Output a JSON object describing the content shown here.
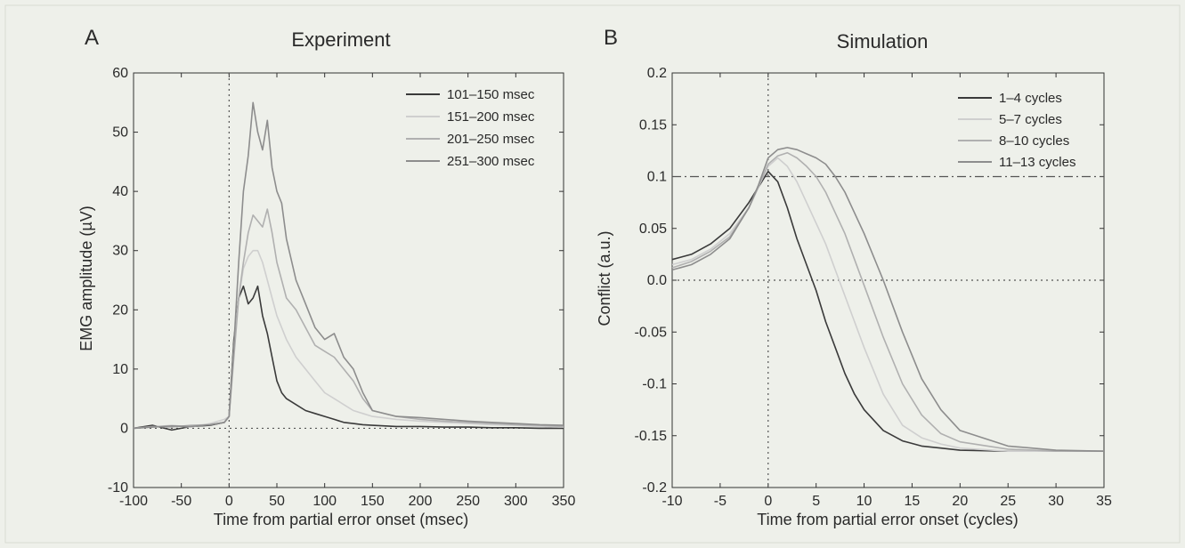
{
  "chart_data": [
    {
      "type": "line",
      "panel_letter": "A",
      "title": "Experiment",
      "xlabel": "Time from partial error onset (msec)",
      "ylabel": "EMG amplitude (µV)",
      "xlim": [
        -100,
        350
      ],
      "ylim": [
        -10,
        60
      ],
      "xticks": [
        "-100",
        "-50",
        "0",
        "50",
        "100",
        "150",
        "200",
        "250",
        "300",
        "350"
      ],
      "yticks": [
        "-10",
        "0",
        "10",
        "20",
        "30",
        "40",
        "50",
        "60"
      ],
      "legend_position": "top-right",
      "reference_lines": [
        {
          "orientation": "vertical",
          "value": 0,
          "style": "dotted"
        },
        {
          "orientation": "horizontal",
          "value": 0,
          "style": "dotted"
        }
      ],
      "series": [
        {
          "name": "101–150 msec",
          "color": "#3a3a3a",
          "x": [
            -100,
            -80,
            -60,
            -40,
            -20,
            -5,
            0,
            5,
            10,
            15,
            20,
            25,
            30,
            35,
            40,
            45,
            50,
            55,
            60,
            70,
            80,
            90,
            100,
            110,
            120,
            130,
            140,
            150,
            175,
            200,
            225,
            250,
            275,
            300,
            325,
            350
          ],
          "y": [
            0,
            0.5,
            -0.3,
            0.3,
            0.5,
            1,
            2,
            15,
            22,
            24,
            21,
            22,
            24,
            19,
            16,
            12,
            8,
            6,
            5,
            4,
            3,
            2.5,
            2,
            1.5,
            1,
            0.8,
            0.6,
            0.5,
            0.3,
            0.3,
            0.2,
            0.2,
            0.1,
            0.1,
            0,
            0
          ]
        },
        {
          "name": "151–200 msec",
          "color": "#cfcfcf",
          "x": [
            -100,
            -80,
            -60,
            -40,
            -20,
            -5,
            0,
            5,
            10,
            15,
            20,
            25,
            30,
            35,
            40,
            45,
            50,
            55,
            60,
            70,
            80,
            90,
            100,
            110,
            120,
            130,
            140,
            150,
            175,
            200,
            225,
            250,
            275,
            300,
            325,
            350
          ],
          "y": [
            0,
            0.2,
            0.5,
            0.2,
            0.8,
            1.5,
            2,
            14,
            22,
            27,
            29,
            30,
            30,
            28,
            25,
            22,
            19,
            17,
            15,
            12,
            10,
            8,
            6,
            5,
            4,
            3,
            2.5,
            2,
            1.5,
            1.2,
            1,
            0.8,
            0.6,
            0.5,
            0.3,
            0.2
          ]
        },
        {
          "name": "201–250 msec",
          "color": "#b0b0b0",
          "x": [
            -100,
            -80,
            -60,
            -40,
            -20,
            -5,
            0,
            5,
            10,
            15,
            20,
            25,
            30,
            35,
            40,
            45,
            50,
            55,
            60,
            70,
            80,
            90,
            100,
            110,
            120,
            130,
            140,
            150,
            175,
            200,
            225,
            250,
            275,
            300,
            325,
            350
          ],
          "y": [
            0,
            0.3,
            0.2,
            0.5,
            0.6,
            1,
            2,
            12,
            22,
            28,
            33,
            36,
            35,
            34,
            37,
            33,
            28,
            25,
            22,
            20,
            17,
            14,
            13,
            12,
            10,
            8,
            5,
            3,
            2,
            1.5,
            1.2,
            1,
            0.8,
            0.6,
            0.5,
            0.3
          ]
        },
        {
          "name": "251–300 msec",
          "color": "#8d8d8d",
          "x": [
            -100,
            -80,
            -60,
            -40,
            -20,
            -5,
            0,
            5,
            10,
            15,
            20,
            25,
            30,
            35,
            40,
            45,
            50,
            55,
            60,
            70,
            80,
            90,
            100,
            110,
            120,
            130,
            140,
            150,
            175,
            200,
            225,
            250,
            275,
            300,
            325,
            350
          ],
          "y": [
            0,
            0.2,
            0.4,
            0.3,
            0.6,
            1,
            2,
            14,
            28,
            40,
            46,
            55,
            50,
            47,
            52,
            44,
            40,
            38,
            32,
            25,
            21,
            17,
            15,
            16,
            12,
            10,
            6,
            3,
            2,
            1.8,
            1.5,
            1.2,
            1,
            0.8,
            0.6,
            0.5
          ]
        }
      ]
    },
    {
      "type": "line",
      "panel_letter": "B",
      "title": "Simulation",
      "xlabel": "Time from partial error onset (cycles)",
      "ylabel": "Conflict (a.u.)",
      "xlim": [
        -10,
        35
      ],
      "ylim": [
        -0.2,
        0.2
      ],
      "xticks": [
        "-10",
        "-5",
        "0",
        "5",
        "10",
        "15",
        "20",
        "25",
        "30",
        "35"
      ],
      "yticks": [
        "-0.2",
        "-0.15",
        "-0.1",
        "-0.05",
        "0.0",
        "0.05",
        "0.1",
        "0.15",
        "0.2"
      ],
      "legend_position": "top-right",
      "reference_lines": [
        {
          "orientation": "vertical",
          "value": 0,
          "style": "dotted"
        },
        {
          "orientation": "horizontal",
          "value": 0,
          "style": "dotted"
        },
        {
          "orientation": "horizontal",
          "value": 0.1,
          "style": "dash-dot"
        }
      ],
      "series": [
        {
          "name": "1–4 cycles",
          "color": "#3a3a3a",
          "x": [
            -10,
            -8,
            -6,
            -4,
            -2,
            -1,
            0,
            1,
            2,
            3,
            4,
            5,
            6,
            7,
            8,
            9,
            10,
            12,
            14,
            16,
            18,
            20,
            25,
            30,
            35
          ],
          "y": [
            0.02,
            0.025,
            0.035,
            0.05,
            0.075,
            0.09,
            0.105,
            0.095,
            0.07,
            0.04,
            0.015,
            -0.01,
            -0.04,
            -0.065,
            -0.09,
            -0.11,
            -0.125,
            -0.145,
            -0.155,
            -0.16,
            -0.162,
            -0.164,
            -0.165,
            -0.165,
            -0.165
          ]
        },
        {
          "name": "5–7 cycles",
          "color": "#cfcfcf",
          "x": [
            -10,
            -8,
            -6,
            -4,
            -2,
            -1,
            0,
            1,
            2,
            3,
            4,
            5,
            6,
            7,
            8,
            9,
            10,
            12,
            14,
            16,
            18,
            20,
            25,
            30,
            35
          ],
          "y": [
            0.015,
            0.02,
            0.03,
            0.045,
            0.07,
            0.09,
            0.11,
            0.118,
            0.11,
            0.095,
            0.075,
            0.055,
            0.035,
            0.01,
            -0.015,
            -0.04,
            -0.065,
            -0.11,
            -0.14,
            -0.152,
            -0.158,
            -0.162,
            -0.165,
            -0.165,
            -0.165
          ]
        },
        {
          "name": "8–10 cycles",
          "color": "#b0b0b0",
          "x": [
            -10,
            -8,
            -6,
            -4,
            -2,
            -1,
            0,
            1,
            2,
            3,
            4,
            5,
            6,
            7,
            8,
            9,
            10,
            12,
            14,
            16,
            18,
            20,
            25,
            30,
            35
          ],
          "y": [
            0.012,
            0.018,
            0.028,
            0.042,
            0.07,
            0.09,
            0.112,
            0.12,
            0.123,
            0.118,
            0.11,
            0.1,
            0.085,
            0.065,
            0.045,
            0.02,
            -0.005,
            -0.055,
            -0.1,
            -0.13,
            -0.148,
            -0.156,
            -0.163,
            -0.165,
            -0.165
          ]
        },
        {
          "name": "11–13 cycles",
          "color": "#8d8d8d",
          "x": [
            -10,
            -8,
            -6,
            -4,
            -2,
            -1,
            0,
            1,
            2,
            3,
            4,
            5,
            6,
            7,
            8,
            9,
            10,
            12,
            14,
            16,
            18,
            20,
            25,
            30,
            35
          ],
          "y": [
            0.01,
            0.015,
            0.025,
            0.04,
            0.07,
            0.092,
            0.118,
            0.126,
            0.128,
            0.126,
            0.122,
            0.118,
            0.112,
            0.1,
            0.085,
            0.065,
            0.045,
            0,
            -0.05,
            -0.095,
            -0.125,
            -0.145,
            -0.16,
            -0.164,
            -0.165
          ]
        }
      ]
    }
  ]
}
